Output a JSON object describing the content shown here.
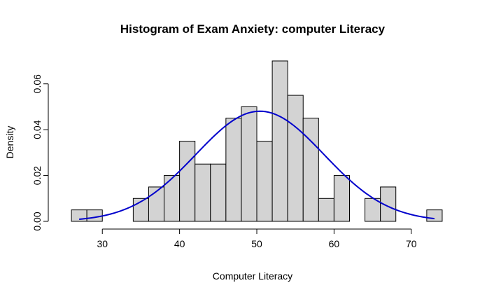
{
  "chart_data": {
    "type": "bar",
    "title": "Histogram of Exam Anxiety: computer Literacy",
    "xlabel": "Computer Literacy",
    "ylabel": "Density",
    "xlim": [
      24,
      75
    ],
    "ylim": [
      0,
      0.07
    ],
    "x_ticks": [
      30,
      40,
      50,
      60,
      70
    ],
    "y_ticks": [
      0.0,
      0.02,
      0.04,
      0.06
    ],
    "y_tick_labels": [
      "0.00",
      "0.02",
      "0.04",
      "0.06"
    ],
    "grid": false,
    "bins": [
      {
        "start": 26,
        "end": 28,
        "density": 0.005
      },
      {
        "start": 28,
        "end": 30,
        "density": 0.005
      },
      {
        "start": 30,
        "end": 32,
        "density": 0.0
      },
      {
        "start": 32,
        "end": 34,
        "density": 0.0
      },
      {
        "start": 34,
        "end": 36,
        "density": 0.01
      },
      {
        "start": 36,
        "end": 38,
        "density": 0.015
      },
      {
        "start": 38,
        "end": 40,
        "density": 0.02
      },
      {
        "start": 40,
        "end": 42,
        "density": 0.035
      },
      {
        "start": 42,
        "end": 44,
        "density": 0.025
      },
      {
        "start": 44,
        "end": 46,
        "density": 0.025
      },
      {
        "start": 46,
        "end": 48,
        "density": 0.045
      },
      {
        "start": 48,
        "end": 50,
        "density": 0.05
      },
      {
        "start": 50,
        "end": 52,
        "density": 0.035
      },
      {
        "start": 52,
        "end": 54,
        "density": 0.07
      },
      {
        "start": 54,
        "end": 56,
        "density": 0.055
      },
      {
        "start": 56,
        "end": 58,
        "density": 0.045
      },
      {
        "start": 58,
        "end": 60,
        "density": 0.01
      },
      {
        "start": 60,
        "end": 62,
        "density": 0.02
      },
      {
        "start": 62,
        "end": 64,
        "density": 0.0
      },
      {
        "start": 64,
        "end": 66,
        "density": 0.01
      },
      {
        "start": 66,
        "end": 68,
        "density": 0.015
      },
      {
        "start": 68,
        "end": 70,
        "density": 0.0
      },
      {
        "start": 70,
        "end": 72,
        "density": 0.0
      },
      {
        "start": 72,
        "end": 74,
        "density": 0.005
      }
    ],
    "bar_color": "#d3d3d3",
    "bar_border_color": "#000000",
    "overlay_curve": {
      "type": "normal-density",
      "mean": 50.4,
      "sd": 8.3,
      "x_range": [
        27,
        73
      ],
      "color": "#0000cc"
    }
  }
}
